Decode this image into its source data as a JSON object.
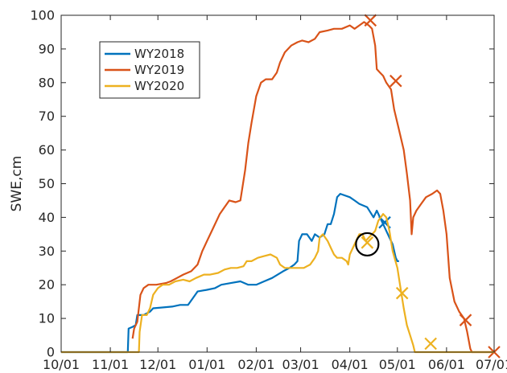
{
  "chart_data": {
    "type": "line",
    "title": "",
    "xlabel": "",
    "ylabel": "SWE,cm",
    "ylim": [
      0,
      100
    ],
    "yticks": [
      0,
      10,
      20,
      30,
      40,
      50,
      60,
      70,
      80,
      90,
      100
    ],
    "xlim_days": [
      0,
      273
    ],
    "xticks": [
      {
        "day": 0,
        "label": "10/01"
      },
      {
        "day": 31,
        "label": "11/01"
      },
      {
        "day": 61,
        "label": "12/01"
      },
      {
        "day": 92,
        "label": "01/01"
      },
      {
        "day": 123,
        "label": "02/01"
      },
      {
        "day": 151,
        "label": "03/01"
      },
      {
        "day": 182,
        "label": "04/01"
      },
      {
        "day": 212,
        "label": "05/01"
      },
      {
        "day": 243,
        "label": "06/01"
      },
      {
        "day": 273,
        "label": "07/01"
      }
    ],
    "grid": false,
    "legend_position": "top-left",
    "series": [
      {
        "name": "WY2018",
        "color": "#0072BD",
        "points": [
          [
            0,
            0
          ],
          [
            42,
            0
          ],
          [
            42.5,
            7
          ],
          [
            45,
            7.5
          ],
          [
            47,
            8
          ],
          [
            48,
            11
          ],
          [
            52,
            11
          ],
          [
            56,
            12
          ],
          [
            58,
            13
          ],
          [
            70,
            13.5
          ],
          [
            75,
            14
          ],
          [
            80,
            14
          ],
          [
            83,
            16
          ],
          [
            86,
            18
          ],
          [
            92,
            18.5
          ],
          [
            97,
            19
          ],
          [
            101,
            20
          ],
          [
            107,
            20.5
          ],
          [
            113,
            21
          ],
          [
            118,
            20
          ],
          [
            123,
            20
          ],
          [
            128,
            21
          ],
          [
            133,
            22
          ],
          [
            140,
            24
          ],
          [
            144,
            25
          ],
          [
            147,
            26
          ],
          [
            149,
            27
          ],
          [
            150,
            33
          ],
          [
            152,
            35
          ],
          [
            155,
            35
          ],
          [
            158,
            33
          ],
          [
            160,
            35
          ],
          [
            163,
            34
          ],
          [
            166,
            35
          ],
          [
            168,
            38
          ],
          [
            170,
            38
          ],
          [
            172,
            41
          ],
          [
            174,
            46
          ],
          [
            176,
            47
          ],
          [
            182,
            46
          ],
          [
            185,
            45
          ],
          [
            188,
            44
          ],
          [
            193,
            43
          ],
          [
            197,
            40
          ],
          [
            199,
            42
          ],
          [
            201,
            40
          ],
          [
            203,
            38
          ],
          [
            205,
            36
          ],
          [
            207,
            34
          ],
          [
            209,
            32
          ],
          [
            211,
            28
          ],
          [
            212,
            27
          ],
          [
            213,
            27
          ]
        ],
        "markers": [
          [
            204,
            38.5
          ]
        ]
      },
      {
        "name": "WY2019",
        "color": "#D95319",
        "points": [
          [
            45,
            4
          ],
          [
            46,
            7
          ],
          [
            48,
            9
          ],
          [
            50,
            17
          ],
          [
            52,
            19
          ],
          [
            55,
            20
          ],
          [
            60,
            20
          ],
          [
            66,
            20.5
          ],
          [
            69,
            21
          ],
          [
            73,
            22
          ],
          [
            77,
            23
          ],
          [
            82,
            24
          ],
          [
            86,
            26
          ],
          [
            89,
            30
          ],
          [
            92,
            33
          ],
          [
            96,
            37
          ],
          [
            100,
            41
          ],
          [
            103,
            43
          ],
          [
            106,
            45
          ],
          [
            110,
            44.5
          ],
          [
            113,
            45
          ],
          [
            116,
            54
          ],
          [
            118,
            62
          ],
          [
            120,
            68
          ],
          [
            123,
            76
          ],
          [
            126,
            80
          ],
          [
            129,
            81
          ],
          [
            133,
            81
          ],
          [
            136,
            83
          ],
          [
            138,
            86
          ],
          [
            141,
            89
          ],
          [
            145,
            91
          ],
          [
            149,
            92
          ],
          [
            152,
            92.5
          ],
          [
            156,
            92
          ],
          [
            160,
            93
          ],
          [
            163,
            95
          ],
          [
            168,
            95.5
          ],
          [
            172,
            96
          ],
          [
            177,
            96
          ],
          [
            182,
            97
          ],
          [
            185,
            96
          ],
          [
            188,
            97
          ],
          [
            191,
            98
          ],
          [
            194,
            97
          ],
          [
            196,
            96
          ],
          [
            198,
            91
          ],
          [
            199,
            84
          ],
          [
            201,
            83
          ],
          [
            203,
            82
          ],
          [
            205,
            80
          ],
          [
            208,
            78
          ],
          [
            210,
            72
          ],
          [
            213,
            66
          ],
          [
            216,
            60
          ],
          [
            218,
            53
          ],
          [
            220,
            45
          ],
          [
            221,
            35
          ],
          [
            222,
            40
          ],
          [
            224,
            42
          ],
          [
            227,
            44
          ],
          [
            230,
            46
          ],
          [
            234,
            47
          ],
          [
            237,
            48
          ],
          [
            239,
            47
          ],
          [
            241,
            42
          ],
          [
            243,
            35
          ],
          [
            245,
            22
          ],
          [
            248,
            15
          ],
          [
            251,
            12
          ],
          [
            254,
            10
          ],
          [
            256,
            6
          ],
          [
            258,
            1
          ],
          [
            259,
            0
          ],
          [
            273,
            0
          ]
        ],
        "markers": [
          [
            195,
            98.5
          ],
          [
            211,
            80.5
          ],
          [
            255,
            9.5
          ],
          [
            273,
            0
          ]
        ]
      },
      {
        "name": "WY2020",
        "color": "#EDB120",
        "points": [
          [
            0,
            0
          ],
          [
            49,
            0
          ],
          [
            49.5,
            6
          ],
          [
            51,
            11
          ],
          [
            54,
            11
          ],
          [
            56,
            13
          ],
          [
            58,
            17
          ],
          [
            61,
            19
          ],
          [
            64,
            20
          ],
          [
            68,
            20
          ],
          [
            72,
            21
          ],
          [
            77,
            21.5
          ],
          [
            81,
            21
          ],
          [
            85,
            22
          ],
          [
            90,
            23
          ],
          [
            94,
            23
          ],
          [
            99,
            23.5
          ],
          [
            103,
            24.5
          ],
          [
            107,
            25
          ],
          [
            111,
            25
          ],
          [
            115,
            25.5
          ],
          [
            117,
            27
          ],
          [
            120,
            27
          ],
          [
            124,
            28
          ],
          [
            128,
            28.5
          ],
          [
            132,
            29
          ],
          [
            136,
            28
          ],
          [
            138,
            26
          ],
          [
            141,
            25
          ],
          [
            145,
            25
          ],
          [
            149,
            25
          ],
          [
            153,
            25
          ],
          [
            157,
            26
          ],
          [
            160,
            28
          ],
          [
            162,
            30
          ],
          [
            163,
            34
          ],
          [
            165,
            35
          ],
          [
            168,
            33
          ],
          [
            170,
            31
          ],
          [
            172,
            29
          ],
          [
            174,
            28
          ],
          [
            177,
            28
          ],
          [
            180,
            27
          ],
          [
            181,
            26
          ],
          [
            182,
            29
          ],
          [
            184,
            31
          ],
          [
            186,
            33
          ],
          [
            188,
            35
          ],
          [
            190,
            35
          ],
          [
            192,
            33
          ],
          [
            194,
            34
          ],
          [
            196,
            35
          ],
          [
            198,
            36
          ],
          [
            200,
            39
          ],
          [
            203,
            41
          ],
          [
            205,
            40
          ],
          [
            207,
            36
          ],
          [
            209,
            30
          ],
          [
            212,
            25
          ],
          [
            214,
            19
          ],
          [
            216,
            13
          ],
          [
            218,
            8
          ],
          [
            220,
            5
          ],
          [
            222,
            2
          ],
          [
            223,
            0
          ],
          [
            273,
            0
          ]
        ],
        "markers": [
          [
            193,
            32.5
          ],
          [
            215,
            17.5
          ],
          [
            233,
            2.5
          ]
        ]
      }
    ],
    "annotations": [
      {
        "shape": "circle",
        "x": 193,
        "y": 32,
        "color": "#000000"
      }
    ]
  }
}
